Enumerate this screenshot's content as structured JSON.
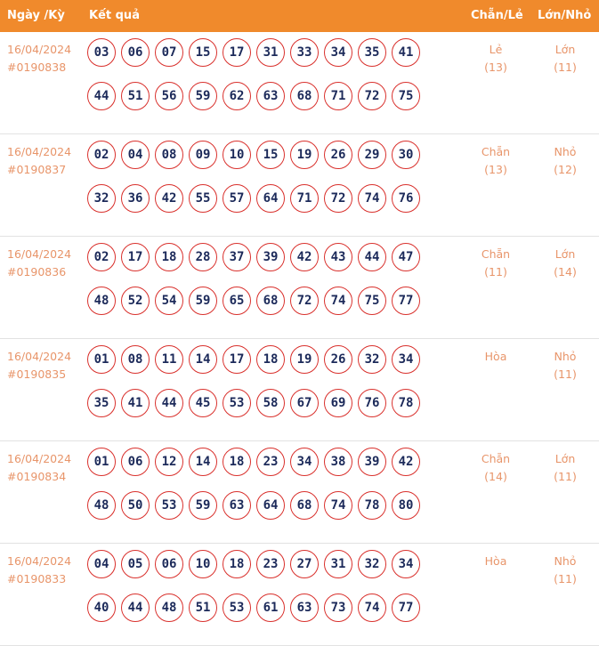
{
  "header": {
    "date": "Ngày /Kỳ",
    "result": "Kết quả",
    "even_odd": "Chẵn/Lẻ",
    "big_small": "Lớn/Nhỏ"
  },
  "rows": [
    {
      "date": "16/04/2024",
      "id": "#0190838",
      "balls": [
        "03",
        "06",
        "07",
        "15",
        "17",
        "31",
        "33",
        "34",
        "35",
        "41",
        "44",
        "51",
        "56",
        "59",
        "62",
        "63",
        "68",
        "71",
        "72",
        "75"
      ],
      "even_odd": "Lẻ",
      "even_odd_count": "(13)",
      "big_small": "Lớn",
      "big_small_count": "(11)"
    },
    {
      "date": "16/04/2024",
      "id": "#0190837",
      "balls": [
        "02",
        "04",
        "08",
        "09",
        "10",
        "15",
        "19",
        "26",
        "29",
        "30",
        "32",
        "36",
        "42",
        "55",
        "57",
        "64",
        "71",
        "72",
        "74",
        "76"
      ],
      "even_odd": "Chẵn",
      "even_odd_count": "(13)",
      "big_small": "Nhỏ",
      "big_small_count": "(12)"
    },
    {
      "date": "16/04/2024",
      "id": "#0190836",
      "balls": [
        "02",
        "17",
        "18",
        "28",
        "37",
        "39",
        "42",
        "43",
        "44",
        "47",
        "48",
        "52",
        "54",
        "59",
        "65",
        "68",
        "72",
        "74",
        "75",
        "77"
      ],
      "even_odd": "Chẵn",
      "even_odd_count": "(11)",
      "big_small": "Lớn",
      "big_small_count": "(14)"
    },
    {
      "date": "16/04/2024",
      "id": "#0190835",
      "balls": [
        "01",
        "08",
        "11",
        "14",
        "17",
        "18",
        "19",
        "26",
        "32",
        "34",
        "35",
        "41",
        "44",
        "45",
        "53",
        "58",
        "67",
        "69",
        "76",
        "78"
      ],
      "even_odd": "Hòa",
      "even_odd_count": "",
      "big_small": "Nhỏ",
      "big_small_count": "(11)"
    },
    {
      "date": "16/04/2024",
      "id": "#0190834",
      "balls": [
        "01",
        "06",
        "12",
        "14",
        "18",
        "23",
        "34",
        "38",
        "39",
        "42",
        "48",
        "50",
        "53",
        "59",
        "63",
        "64",
        "68",
        "74",
        "78",
        "80"
      ],
      "even_odd": "Chẵn",
      "even_odd_count": "(14)",
      "big_small": "Lớn",
      "big_small_count": "(11)"
    },
    {
      "date": "16/04/2024",
      "id": "#0190833",
      "balls": [
        "04",
        "05",
        "06",
        "10",
        "18",
        "23",
        "27",
        "31",
        "32",
        "34",
        "40",
        "44",
        "48",
        "51",
        "53",
        "61",
        "63",
        "73",
        "74",
        "77"
      ],
      "even_odd": "Hòa",
      "even_odd_count": "",
      "big_small": "Nhỏ",
      "big_small_count": "(11)"
    }
  ]
}
